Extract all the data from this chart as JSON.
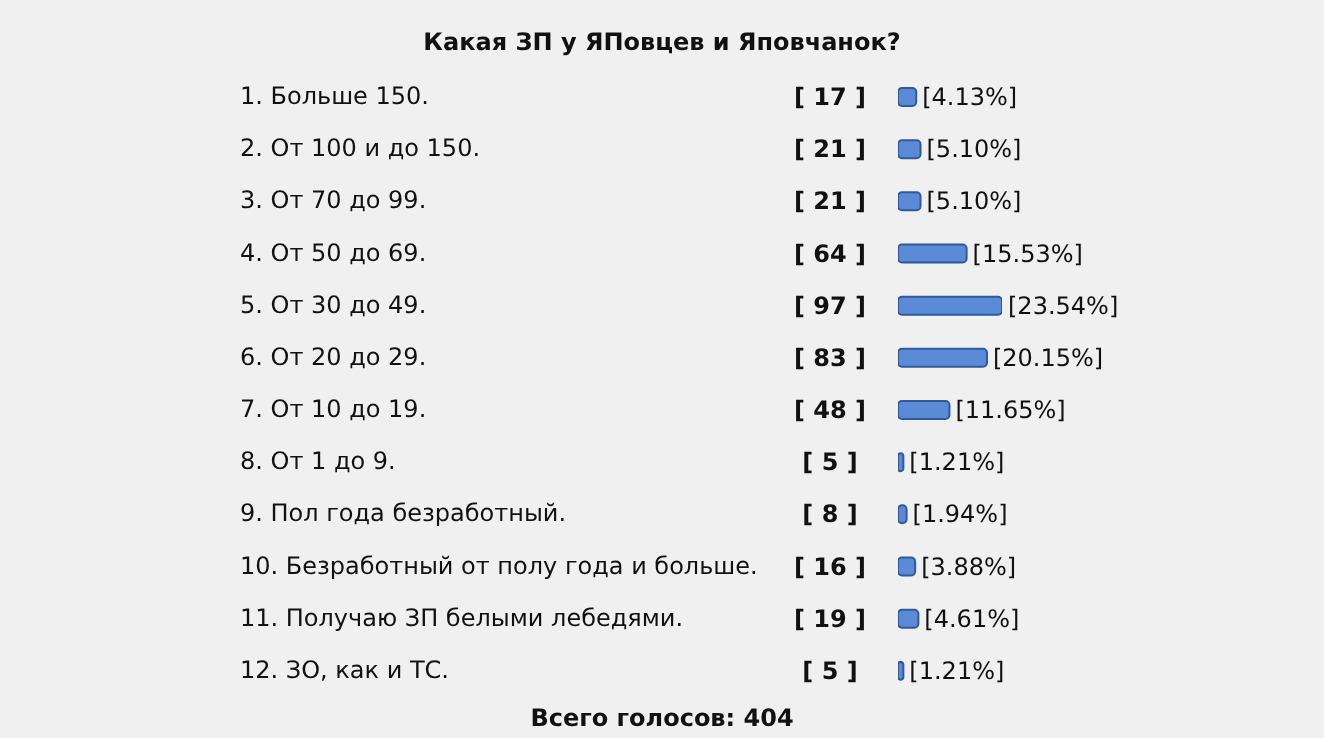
{
  "chart_data": {
    "type": "bar",
    "orientation": "horizontal",
    "title": "Какая ЗП у ЯПовцев и Яповчанок?",
    "categories": [
      "1. Больше 150.",
      "2. От 100 и до 150.",
      "3. От 70 до 99.",
      "4. От 50 до 69.",
      "5. От 30 до 49.",
      "6. От 20 до 29.",
      "7. От 10 до 19.",
      "8. От 1 до 9.",
      "9. Пол года безработный.",
      "10. Безработный от полу года и больше.",
      "11. Получаю ЗП белыми лебедями.",
      "12. ЗО, как и ТС."
    ],
    "values": [
      17,
      21,
      21,
      64,
      97,
      83,
      48,
      5,
      8,
      16,
      19,
      5
    ],
    "value_labels": [
      "[ 17 ]",
      "[ 21 ]",
      "[ 21 ]",
      "[ 64 ]",
      "[ 97 ]",
      "[ 83 ]",
      "[ 48 ]",
      "[ 5 ]",
      "[ 8 ]",
      "[ 16 ]",
      "[ 19 ]",
      "[ 5 ]"
    ],
    "color": "#5b8bd6",
    "annotations": [
      {
        "text": "[4.13%]",
        "x": 17,
        "y": "1. Больше 150."
      },
      {
        "text": "[5.10%]",
        "x": 21,
        "y": "2. От 100 и до 150."
      },
      {
        "text": "[5.10%]",
        "x": 21,
        "y": "3. От 70 до 99."
      },
      {
        "text": "[15.53%]",
        "x": 64,
        "y": "4. От 50 до 69."
      },
      {
        "text": "[23.54%]",
        "x": 97,
        "y": "5. От 30 до 49."
      },
      {
        "text": "[20.15%]",
        "x": 83,
        "y": "6. От 20 до 29."
      },
      {
        "text": "[11.65%]",
        "x": 48,
        "y": "7. От 10 до 19."
      },
      {
        "text": "[1.21%]",
        "x": 5,
        "y": "8. От 1 до 9."
      },
      {
        "text": "[1.94%]",
        "x": 8,
        "y": "9. Пол года безработный."
      },
      {
        "text": "[3.88%]",
        "x": 16,
        "y": "10. Безработный от полу года и больше."
      },
      {
        "text": "[4.61%]",
        "x": 19,
        "y": "11. Получаю ЗП белыми лебедями."
      },
      {
        "text": "[1.21%]",
        "x": 5,
        "y": "12. ЗО, как и ТС."
      },
      "Всего голосов: 404"
    ],
    "grid": false,
    "legend": false
  }
}
